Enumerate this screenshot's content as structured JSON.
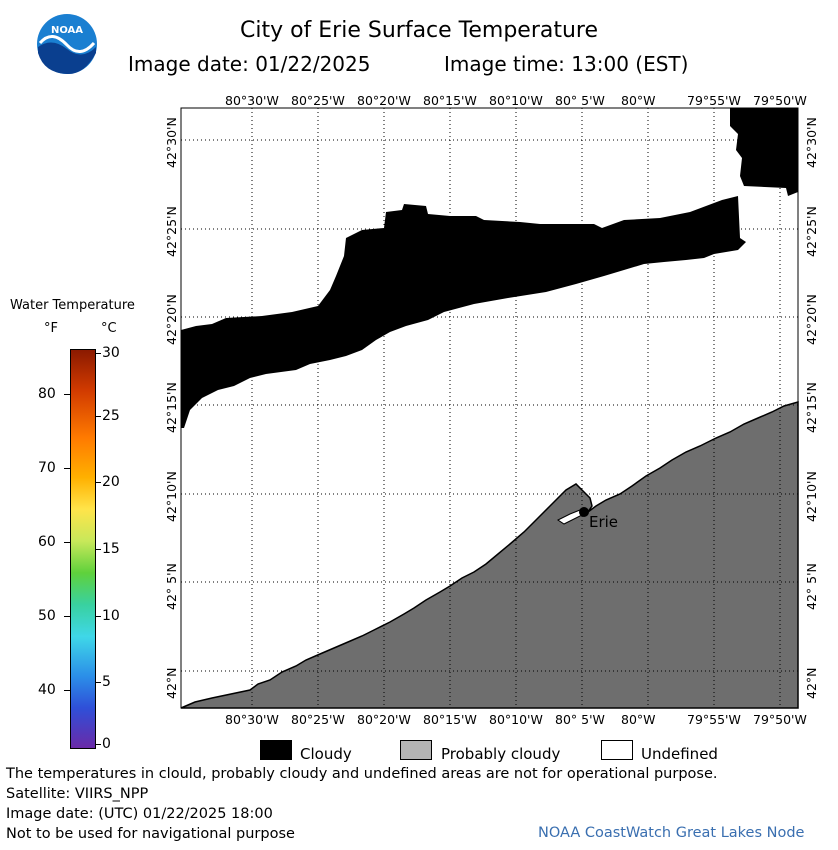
{
  "header": {
    "title": "City of Erie Surface Temperature",
    "image_date": "Image date: 01/22/2025",
    "image_time": "Image time: 13:00 (EST)"
  },
  "logo": {
    "icon": "noaa-logo-icon",
    "text": "NOAA"
  },
  "map": {
    "lon_labels": [
      "80°30'W",
      "80°25'W",
      "80°20'W",
      "80°15'W",
      "80°10'W",
      "80° 5'W",
      "80°W",
      "79°55'W",
      "79°50'W"
    ],
    "lon_labels_top": [
      "80°30'W",
      "80°25'W",
      "80°20'W",
      "80°15'W",
      "80°10'W",
      "80° 5'W",
      "80°W",
      "79°55'W",
      "79°50'W"
    ],
    "lat_labels": [
      "42°30'N",
      "42°25'N",
      "42°20'N",
      "42°15'N",
      "42°10'N",
      "42° 5'N",
      "42°N"
    ],
    "city_label": "Erie",
    "colors": {
      "cloudy": "#000000",
      "land": "#6e6e6e",
      "undefined": "#ffffff",
      "grid": "#000000"
    }
  },
  "color_scale": {
    "title": "Water Temperature",
    "unit_f": "°F",
    "unit_c": "°C",
    "f_ticks": [
      "80",
      "70",
      "60",
      "50",
      "40"
    ],
    "c_ticks": [
      "30",
      "25",
      "20",
      "15",
      "10",
      "5",
      "0"
    ]
  },
  "legend": {
    "items": [
      {
        "label": "Cloudy",
        "color": "#000000"
      },
      {
        "label": "Probably cloudy",
        "color": "#b4b4b4"
      },
      {
        "label": "Undefined",
        "color": "#ffffff"
      }
    ]
  },
  "footer": {
    "line1": "The temperatures in clould, probably cloudy and undefined areas are not for operational purpose.",
    "line2": "Satellite: VIIRS_NPP",
    "line3": "Image date: (UTC) 01/22/2025  18:00",
    "line4": "Not to be used for navigational purpose",
    "credit": "NOAA CoastWatch Great Lakes Node"
  }
}
